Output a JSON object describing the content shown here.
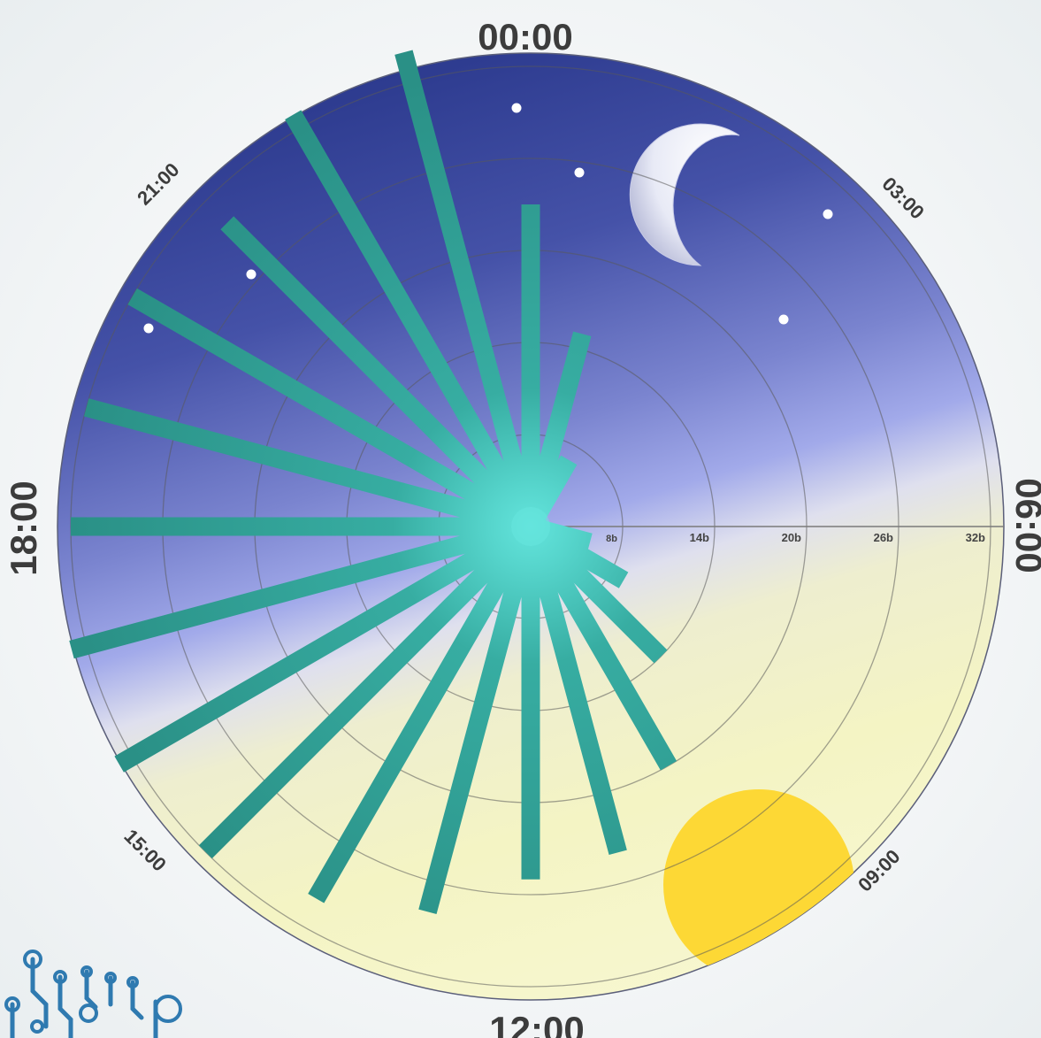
{
  "chart_data": {
    "type": "radial-bar",
    "categories": [
      "00:00",
      "01:00",
      "02:00",
      "03:00",
      "04:00",
      "05:00",
      "06:00",
      "07:00",
      "08:00",
      "09:00",
      "10:00",
      "11:00",
      "12:00",
      "13:00",
      "14:00",
      "15:00",
      "16:00",
      "17:00",
      "18:00",
      "19:00",
      "20:00",
      "21:00",
      "22:00",
      "23:00"
    ],
    "values": [
      23,
      15,
      7,
      3,
      3,
      2,
      1,
      6,
      9,
      14,
      20,
      24,
      25,
      28,
      30,
      32,
      33,
      33,
      32,
      32,
      32,
      30,
      33,
      34
    ],
    "rlim": [
      2,
      32
    ],
    "ring_labels": [
      "8b",
      "14b",
      "20b",
      "26b",
      "32b"
    ],
    "ring_values": [
      8,
      14,
      20,
      26,
      32
    ],
    "time_labels": {
      "top": "00:00",
      "right": "06:00",
      "bottom": "12:00",
      "left": "18:00",
      "top_right": "03:00",
      "bottom_right": "09:00",
      "bottom_left": "15:00",
      "top_left": "21:00"
    },
    "grid": true,
    "colors": {
      "bar": "#2a9d8f",
      "night_top": "#2c3a8e",
      "twilight": "#9aa3e6",
      "day": "#f7f7c9",
      "moon": "#eceefa",
      "sun": "#fdd835",
      "star": "#ffffff"
    },
    "icons": [
      "moon-icon",
      "sun-icon",
      "star-icon",
      "circuit-logo"
    ]
  }
}
